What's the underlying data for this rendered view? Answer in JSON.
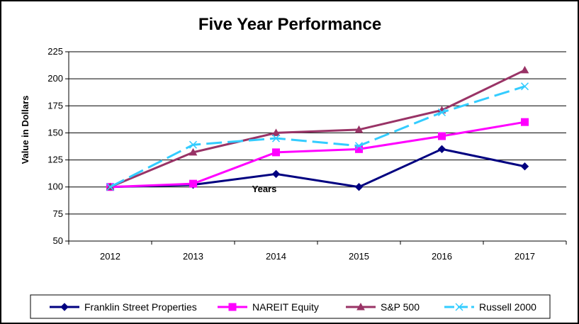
{
  "chart_data": {
    "type": "line",
    "title": "Five Year Performance",
    "ylabel": "Value in Dollars",
    "xlabel": "Years",
    "categories": [
      "2012",
      "2013",
      "2014",
      "2015",
      "2016",
      "2017"
    ],
    "yticks": [
      "50",
      "75",
      "100",
      "125",
      "150",
      "175",
      "200",
      "225"
    ],
    "ylim": [
      50,
      225
    ],
    "grid": true,
    "legend_position": "bottom",
    "series": [
      {
        "name": "Franklin Street Properties",
        "values": [
          100,
          102,
          112,
          100,
          135,
          119
        ],
        "color": "#000080",
        "marker": "diamond",
        "dash": "solid"
      },
      {
        "name": "NAREIT Equity",
        "values": [
          100,
          103,
          132,
          135,
          147,
          160
        ],
        "color": "#ff00ff",
        "marker": "square",
        "dash": "solid"
      },
      {
        "name": "S&P 500",
        "values": [
          100,
          132,
          150,
          153,
          171,
          208
        ],
        "color": "#993366",
        "marker": "triangle",
        "dash": "solid"
      },
      {
        "name": "Russell 2000",
        "values": [
          100,
          139,
          145,
          138,
          169,
          193
        ],
        "color": "#33ccff",
        "marker": "x",
        "dash": "long-dash"
      }
    ]
  }
}
